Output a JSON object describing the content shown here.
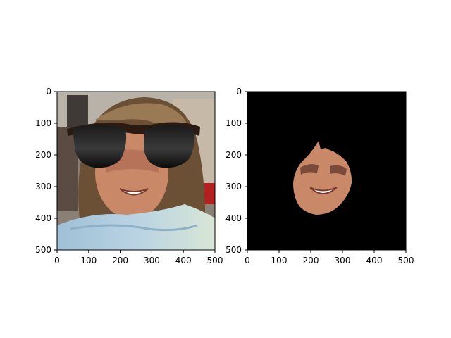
{
  "figure": {
    "background": "#ffffff",
    "axes_color": "#000000",
    "panels": [
      {
        "id": "left-panel",
        "content": "face with sunglasses overlay",
        "xlim": [
          0,
          500
        ],
        "ylim": [
          500,
          0
        ],
        "x_ticks": [
          0,
          100,
          200,
          300,
          400,
          500
        ],
        "y_ticks": [
          0,
          100,
          200,
          300,
          400,
          500
        ]
      },
      {
        "id": "right-panel",
        "content": "segmented face mask on black background",
        "xlim": [
          0,
          500
        ],
        "ylim": [
          500,
          0
        ],
        "x_ticks": [
          0,
          100,
          200,
          300,
          400,
          500
        ],
        "y_ticks": [
          0,
          100,
          200,
          300,
          400,
          500
        ]
      }
    ],
    "x_tick_labels": [
      "0",
      "100",
      "200",
      "300",
      "400",
      "500"
    ],
    "y_tick_labels": [
      "0",
      "100",
      "200",
      "300",
      "400",
      "500"
    ]
  }
}
